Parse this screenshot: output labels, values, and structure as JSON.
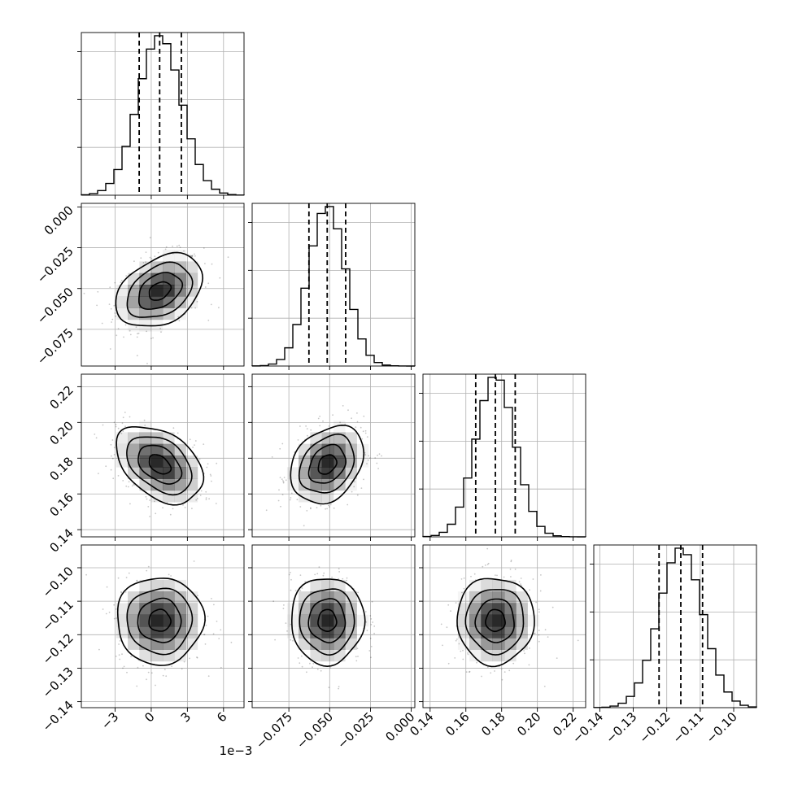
{
  "chart_data": {
    "type": "corner",
    "parameters": [
      {
        "mean": 0.0007,
        "sd": 0.0018,
        "xlim": [
          -0.0058,
          0.0077
        ],
        "ticks": [
          -0.003,
          0,
          0.003,
          0.006
        ],
        "tick_labels": [
          "−3",
          "0",
          "3",
          "6"
        ],
        "offset_text": "1e−3",
        "quantiles": [
          -0.001,
          0.0007,
          0.0025
        ]
      },
      {
        "mean": -0.0515,
        "sd": 0.0112,
        "xlim": [
          -0.0975,
          0.0022
        ],
        "ylim": [
          -0.0975,
          0.0022
        ],
        "ticks": [
          -0.075,
          -0.05,
          -0.025,
          0.0
        ],
        "x_tick_labels": [
          "−0.075",
          "−0.050",
          "−0.025",
          "0.000"
        ],
        "y_tick_labels": [
          "−0.075",
          "−0.050",
          "−0.025",
          "0.000"
        ],
        "quantiles": [
          -0.0627,
          -0.0515,
          -0.0402
        ]
      },
      {
        "mean": 0.1765,
        "sd": 0.0108,
        "xlim": [
          0.136,
          0.227
        ],
        "ylim": [
          0.136,
          0.227
        ],
        "ticks": [
          0.14,
          0.16,
          0.18,
          0.2,
          0.22
        ],
        "tick_labels": [
          "0.14",
          "0.16",
          "0.18",
          "0.20",
          "0.22"
        ],
        "quantiles": [
          0.1655,
          0.1765,
          0.1876
        ]
      },
      {
        "mean": -0.1158,
        "sd": 0.0065,
        "xlim": [
          -0.1418,
          -0.0932
        ],
        "ylim": [
          -0.1418,
          -0.0932
        ],
        "ticks": [
          -0.14,
          -0.13,
          -0.12,
          -0.11,
          -0.1
        ],
        "tick_labels": [
          "−0.14",
          "−0.13",
          "−0.12",
          "−0.11",
          "−0.10"
        ],
        "quantiles": [
          -0.1223,
          -0.1158,
          -0.1093
        ]
      }
    ],
    "correlations": [
      [
        1.0,
        0.35,
        -0.4,
        0.0
      ],
      [
        0.35,
        1.0,
        0.28,
        0.0
      ],
      [
        -0.4,
        0.28,
        1.0,
        0.0
      ],
      [
        0.0,
        0.0,
        0.0,
        1.0
      ]
    ],
    "histogram_bins": 20,
    "contour_levels": [
      0.118,
      0.393,
      0.675,
      0.865
    ],
    "grid": true,
    "colors": {
      "frame": "#000000",
      "grid": "#b0b0b0",
      "density": "#000000",
      "points": "#000000"
    }
  }
}
